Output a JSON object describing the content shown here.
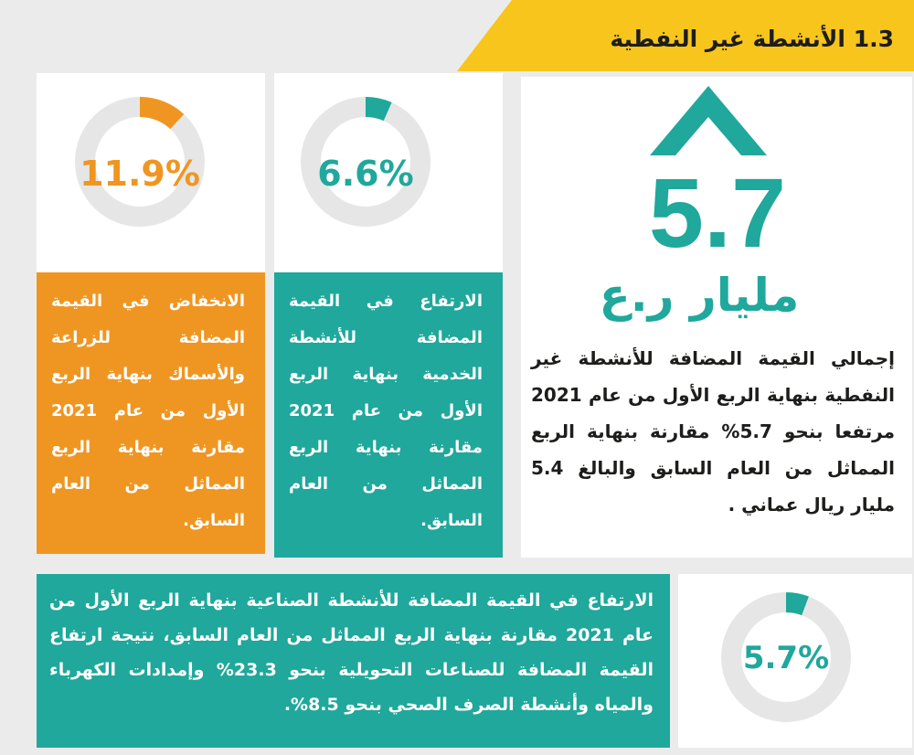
{
  "header": {
    "title": "1.3 الأنشطة غير النفطية",
    "accent_color": "#f7c51b"
  },
  "colors": {
    "teal": "#1fa89b",
    "orange": "#ef9622",
    "ring_track": "#e6e6e6"
  },
  "total": {
    "icon": "chevron-up-icon",
    "value": "5.7",
    "unit": "مليار ر.ع",
    "description": "إجمالي القيمة المضافة للأنشطة غير النفطية بنهاية الربع الأول من عام 2021 مرتفعا بنحو 5.7% مقارنة بنهاية الربع المماثل من العام السابق والبالغ 5.4 مليار ريال عماني ."
  },
  "services": {
    "percent_label": "6.6%",
    "percent_value": 6.6,
    "description": "الارتفاع في القيمة المضافة للأنشطة الخدمية بنهاية الربع الأول من عام 2021 مقارنة بنهاية الربع المماثل من العام السابق."
  },
  "agriculture": {
    "percent_label": "11.9%",
    "percent_value": 11.9,
    "description": "الانخفاض في القيمة المضافة للزراعة والأسماك بنهاية الربع الأول من عام 2021 مقارنة بنهاية الربع المماثل من العام السابق."
  },
  "industry": {
    "percent_label": "5.7%",
    "percent_value": 5.7,
    "description": "الارتفاع في القيمة المضافة للأنشطة الصناعية بنهاية الربع الأول من عام 2021 مقارنة بنهاية الربع المماثل من العام السابق، نتيجة ارتفاع القيمة المضافة للصناعات التحويلية بنحو 23.3% وإمدادات الكهرباء والمياه وأنشطة الصرف الصحي بنحو 8.5%."
  }
}
